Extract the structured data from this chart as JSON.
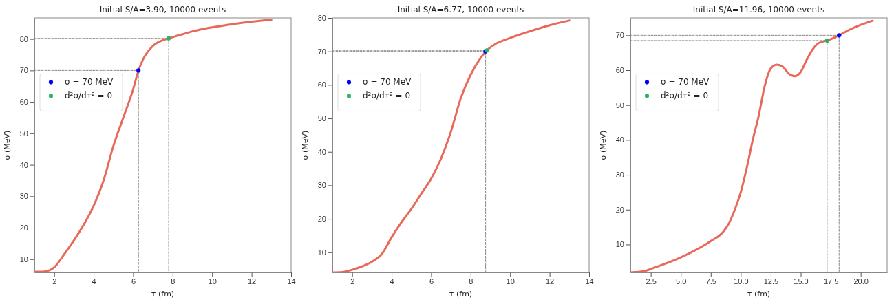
{
  "chart_data": [
    {
      "type": "line",
      "title": "Initial S/A=3.90, 10000 events",
      "xlabel": "τ (fm)",
      "ylabel": "σ (MeV)",
      "xlim": [
        1,
        14
      ],
      "ylim": [
        5.8,
        86.7
      ],
      "xticks": [
        2,
        4,
        6,
        8,
        10,
        12,
        14
      ],
      "yticks": [
        10,
        20,
        30,
        40,
        50,
        60,
        70,
        80
      ],
      "legend": "top left",
      "series": [
        {
          "type": "line",
          "color": "#e8685a",
          "line_style": "solid",
          "x": [
            1,
            1.5,
            2,
            2.5,
            3,
            3.5,
            4,
            4.5,
            5,
            5.5,
            6,
            6.27,
            6.5,
            7,
            7.5,
            7.8,
            8.5,
            9,
            10,
            11,
            12,
            13
          ],
          "values": [
            6,
            6.1,
            7.4,
            11.5,
            16,
            21,
            27,
            35,
            46,
            55,
            64,
            70,
            73.5,
            77.8,
            79.6,
            80.2,
            81.5,
            82.4,
            83.7,
            84.7,
            85.5,
            86.1
          ]
        },
        {
          "type": "line",
          "color": "#808080",
          "line_style": "dashed",
          "x": [
            1,
            6.27,
            6.27
          ],
          "values": [
            70,
            70,
            5.8
          ]
        },
        {
          "type": "line",
          "color": "#808080",
          "line_style": "dashed",
          "x": [
            1,
            7.8,
            7.8
          ],
          "values": [
            80.2,
            80.2,
            5.8
          ]
        },
        {
          "type": "scatter",
          "name": "σ = 70 MeV",
          "color": "#0000ff",
          "marker": "circle",
          "x": [
            6.27
          ],
          "values": [
            70
          ]
        },
        {
          "type": "scatter",
          "name": "d²σ/dτ² = 0",
          "color": "#28b463",
          "marker": "circle",
          "x": [
            7.8
          ],
          "values": [
            80.2
          ]
        }
      ]
    },
    {
      "type": "line",
      "title": "Initial S/A=6.77, 10000 events",
      "xlabel": "τ (fm)",
      "ylabel": "σ (MeV)",
      "xlim": [
        1,
        14
      ],
      "ylim": [
        4,
        80
      ],
      "xticks": [
        2,
        4,
        6,
        8,
        10,
        12,
        14
      ],
      "yticks": [
        10,
        20,
        30,
        40,
        50,
        60,
        70,
        80
      ],
      "legend": "top left",
      "series": [
        {
          "type": "line",
          "color": "#e8685a",
          "line_style": "solid",
          "x": [
            1,
            1.5,
            2,
            2.5,
            3,
            3.5,
            4,
            4.5,
            5,
            5.5,
            6,
            6.5,
            7,
            7.5,
            8,
            8.5,
            8.82,
            9.2,
            10,
            11,
            12,
            13
          ],
          "values": [
            4,
            4.1,
            4.8,
            5.8,
            7.2,
            9.5,
            14.5,
            19,
            23,
            27.5,
            32,
            38,
            46,
            56,
            63,
            68,
            70.3,
            72,
            74,
            76,
            77.8,
            79.2
          ]
        },
        {
          "type": "line",
          "color": "#808080",
          "line_style": "dashed",
          "x": [
            1,
            8.75,
            8.75
          ],
          "values": [
            70,
            70,
            4
          ]
        },
        {
          "type": "line",
          "color": "#808080",
          "line_style": "dashed",
          "x": [
            1,
            8.82,
            8.82
          ],
          "values": [
            70.3,
            70.3,
            4
          ]
        },
        {
          "type": "scatter",
          "name": "σ = 70 MeV",
          "color": "#0000ff",
          "marker": "circle",
          "x": [
            8.75
          ],
          "values": [
            70
          ]
        },
        {
          "type": "scatter",
          "name": "d²σ/dτ² = 0",
          "color": "#28b463",
          "marker": "circle",
          "x": [
            8.82
          ],
          "values": [
            70.3
          ]
        }
      ]
    },
    {
      "type": "line",
      "title": "Initial S/A=11.96, 10000 events",
      "xlabel": "τ (fm)",
      "ylabel": "σ (MeV)",
      "xlim": [
        0.8,
        22.2
      ],
      "ylim": [
        2,
        75
      ],
      "xticks": [
        2.5,
        {
          "value": 5,
          "label": "5.0"
        },
        7.5,
        {
          "value": 10,
          "label": "10.0"
        },
        12.5,
        {
          "value": 15,
          "label": "15.0"
        },
        17.5,
        {
          "value": 20,
          "label": "20.0"
        }
      ],
      "yticks": [
        10,
        20,
        30,
        40,
        50,
        60,
        70
      ],
      "legend": "top left",
      "series": [
        {
          "type": "line",
          "color": "#e8685a",
          "line_style": "solid",
          "x": [
            0.8,
            2,
            2.5,
            5,
            7.5,
            8.5,
            9,
            9.5,
            10,
            10.5,
            11,
            11.5,
            12,
            12.5,
            13,
            13.5,
            14,
            14.5,
            15,
            15.5,
            16,
            16.5,
            17.2,
            18.2,
            19,
            20,
            21
          ],
          "values": [
            2,
            2.4,
            3,
            6.3,
            11,
            13.5,
            16,
            20,
            25,
            32,
            40,
            47,
            55.5,
            60.5,
            61.6,
            61,
            59,
            58.3,
            59.5,
            63,
            66,
            67.8,
            68.5,
            70,
            71.5,
            73,
            74.2
          ]
        },
        {
          "type": "line",
          "color": "#808080",
          "line_style": "dashed",
          "x": [
            0.8,
            18.2,
            18.2
          ],
          "values": [
            70,
            70,
            2
          ]
        },
        {
          "type": "line",
          "color": "#808080",
          "line_style": "dashed",
          "x": [
            0.8,
            17.2,
            17.2
          ],
          "values": [
            68.5,
            68.5,
            2
          ]
        },
        {
          "type": "scatter",
          "name": "σ = 70 MeV",
          "color": "#0000ff",
          "marker": "circle",
          "x": [
            18.2
          ],
          "values": [
            70
          ]
        },
        {
          "type": "scatter",
          "name": "d²σ/dτ² = 0",
          "color": "#28b463",
          "marker": "circle",
          "x": [
            17.2
          ],
          "values": [
            68.5
          ]
        }
      ]
    }
  ]
}
